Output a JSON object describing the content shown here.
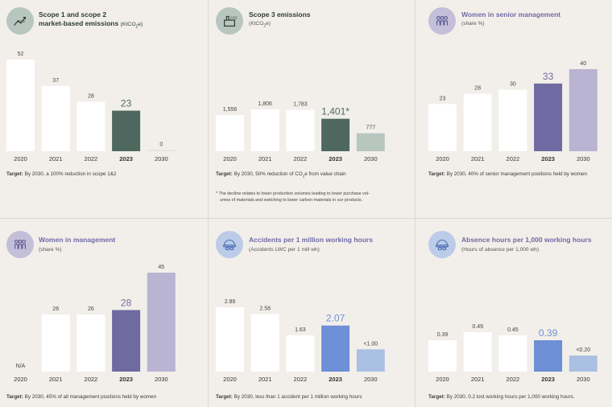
{
  "colors": {
    "bar": "#ffffff",
    "green_highlight": "#4e685f",
    "purple_highlight": "#6f6aa2",
    "purple_light": "#b8b4d1",
    "blue_highlight": "#6d8fd6",
    "blue_light": "#aac0e2",
    "green_icon_bg": "#b8c6c0",
    "purple_icon_bg": "#c3bfd9",
    "blue_icon_bg": "#bccbe8"
  },
  "panels": [
    {
      "title_line1": "Scope 1 and scope 2",
      "title_line2": "market-based emissions",
      "title_unit": "(KtCO",
      "title_unit_sub": "2",
      "title_unit_end": "e)",
      "icon": "co2-reduction-icon",
      "target_label": "Target:",
      "target_text": "By 2030, a 100% reduction in scope 1&2"
    },
    {
      "title_line1": "Scope 3 emissions",
      "subtitle": "(KtCO",
      "subtitle_sub": "2",
      "subtitle_end": "e)",
      "icon": "co2-factory-icon",
      "target_label": "Target:",
      "target_text_a": "By 2030, 50% reduction of CO",
      "target_text_sub": "2",
      "target_text_b": "e from value chain",
      "footnote_line1": "* The decline relates to lower production volumes leading to lower purchase vol-",
      "footnote_line2": "umes of materials and switching to lower carbon materials in our products."
    },
    {
      "title_line1": "Women in senior management",
      "subtitle": "(share %)",
      "icon": "people-group-icon",
      "target_label": "Target:",
      "target_text": "By 2030, 40% of senior management positions held by women"
    },
    {
      "title_line1": "Women in management",
      "subtitle": "(share %)",
      "icon": "people-group-icon",
      "target_label": "Target:",
      "target_text": "By 2030, 45% of all management positions held by women"
    },
    {
      "title_line1": "Accidents per 1 million working hours",
      "subtitle": "(Accidents LWC per 1 mill wh)",
      "icon": "safety-helmet-icon",
      "target_label": "Target:",
      "target_text": "By 2030, less than 1 accident per 1 million working hours"
    },
    {
      "title_line1": "Absence hours per 1,000 working hours",
      "subtitle": "(Hours of absence per 1,000 wh)",
      "icon": "safety-helmet-icon",
      "target_label": "Target:",
      "target_text": "By 2030, 0.2 lost working hours per 1,000 working hours."
    }
  ],
  "chart_data": [
    {
      "type": "bar",
      "categories": [
        "2020",
        "2021",
        "2022",
        "2023",
        "2030"
      ],
      "values": [
        52,
        37,
        28,
        23,
        0
      ],
      "value_labels": [
        "52",
        "37",
        "28",
        "23",
        "0"
      ],
      "highlight_index": 3,
      "ylim": [
        0,
        52
      ]
    },
    {
      "type": "bar",
      "categories": [
        "2020",
        "2021",
        "2022",
        "2023",
        "2030"
      ],
      "values": [
        1556,
        1806,
        1783,
        1401,
        777
      ],
      "value_labels": [
        "1,556",
        "1,806",
        "1,783",
        "1,401*",
        "777"
      ],
      "highlight_index": 3,
      "ylim": [
        0,
        1806
      ]
    },
    {
      "type": "bar",
      "categories": [
        "2020",
        "2021",
        "2022",
        "2023",
        "2030"
      ],
      "values": [
        23,
        28,
        30,
        33,
        40
      ],
      "value_labels": [
        "23",
        "28",
        "30",
        "33",
        "40"
      ],
      "highlight_index": 3,
      "ylim": [
        0,
        40
      ]
    },
    {
      "type": "bar",
      "categories": [
        "2020",
        "2021",
        "2022",
        "2023",
        "2030"
      ],
      "values": [
        null,
        26,
        26,
        28,
        45
      ],
      "value_labels": [
        "N/A",
        "26",
        "26",
        "28",
        "45"
      ],
      "highlight_index": 3,
      "ylim": [
        0,
        45
      ]
    },
    {
      "type": "bar",
      "categories": [
        "2020",
        "2021",
        "2022",
        "2023",
        "2030"
      ],
      "values": [
        2.89,
        2.58,
        1.63,
        2.07,
        1.0
      ],
      "value_labels": [
        "2.89",
        "2.58",
        "1.63",
        "2.07",
        "<1.00"
      ],
      "highlight_index": 3,
      "ylim": [
        0,
        2.89
      ]
    },
    {
      "type": "bar",
      "categories": [
        "2020",
        "2021",
        "2022",
        "2023",
        "2030"
      ],
      "values": [
        0.39,
        0.49,
        0.45,
        0.39,
        0.2
      ],
      "value_labels": [
        "0.39",
        "0.49",
        "0.45",
        "0.39",
        "<0.20"
      ],
      "highlight_index": 3,
      "ylim": [
        0,
        0.49
      ]
    }
  ]
}
